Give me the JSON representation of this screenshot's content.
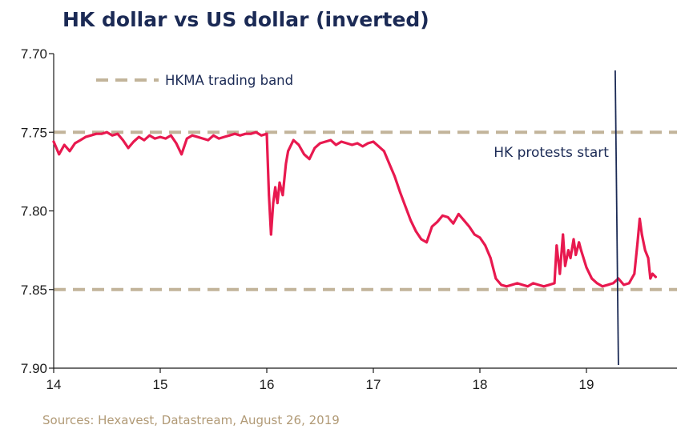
{
  "chart_data": {
    "type": "line",
    "title": "HK dollar vs US dollar (inverted)",
    "source": "Sources: Hexavest, Datastream, August 26, 2019",
    "xlabel": "",
    "ylabel": "",
    "x_ticks": [
      "14",
      "15",
      "16",
      "17",
      "18",
      "19"
    ],
    "y_ticks": [
      "7.70",
      "7.75",
      "7.80",
      "7.85",
      "7.90"
    ],
    "xlim": [
      14,
      19.75
    ],
    "ylim": [
      7.7,
      7.9
    ],
    "y_inverted": true,
    "grid": false,
    "legend_position": "top-left",
    "series": [
      {
        "color": "#e8194f",
        "x": [
          14.0,
          14.05,
          14.1,
          14.15,
          14.2,
          14.25,
          14.3,
          14.35,
          14.4,
          14.45,
          14.5,
          14.55,
          14.6,
          14.65,
          14.7,
          14.75,
          14.8,
          14.85,
          14.9,
          14.95,
          15.0,
          15.05,
          15.1,
          15.15,
          15.2,
          15.25,
          15.3,
          15.35,
          15.4,
          15.45,
          15.5,
          15.55,
          15.6,
          15.65,
          15.7,
          15.75,
          15.8,
          15.85,
          15.9,
          15.95,
          16.0,
          16.02,
          16.04,
          16.06,
          16.08,
          16.1,
          16.12,
          16.15,
          16.18,
          16.2,
          16.25,
          16.3,
          16.35,
          16.4,
          16.45,
          16.5,
          16.55,
          16.6,
          16.65,
          16.7,
          16.75,
          16.8,
          16.85,
          16.9,
          16.95,
          17.0,
          17.05,
          17.1,
          17.15,
          17.2,
          17.25,
          17.3,
          17.35,
          17.4,
          17.45,
          17.5,
          17.55,
          17.6,
          17.65,
          17.7,
          17.75,
          17.8,
          17.85,
          17.9,
          17.95,
          18.0,
          18.05,
          18.1,
          18.15,
          18.2,
          18.25,
          18.3,
          18.35,
          18.4,
          18.45,
          18.5,
          18.55,
          18.6,
          18.65,
          18.7,
          18.72,
          18.75,
          18.78,
          18.8,
          18.83,
          18.85,
          18.88,
          18.9,
          18.93,
          18.95,
          19.0,
          19.05,
          19.1,
          19.15,
          19.2,
          19.25,
          19.3,
          19.35,
          19.4,
          19.45,
          19.48,
          19.5,
          19.52,
          19.55,
          19.58,
          19.6,
          19.62,
          19.65
        ],
        "values": [
          7.756,
          7.764,
          7.758,
          7.762,
          7.757,
          7.755,
          7.753,
          7.752,
          7.751,
          7.751,
          7.75,
          7.752,
          7.751,
          7.755,
          7.76,
          7.756,
          7.753,
          7.755,
          7.752,
          7.754,
          7.753,
          7.754,
          7.752,
          7.757,
          7.764,
          7.754,
          7.752,
          7.753,
          7.754,
          7.755,
          7.752,
          7.754,
          7.753,
          7.752,
          7.751,
          7.752,
          7.751,
          7.751,
          7.75,
          7.752,
          7.751,
          7.79,
          7.815,
          7.795,
          7.785,
          7.795,
          7.782,
          7.79,
          7.77,
          7.762,
          7.755,
          7.758,
          7.764,
          7.767,
          7.76,
          7.757,
          7.756,
          7.755,
          7.758,
          7.756,
          7.757,
          7.758,
          7.757,
          7.759,
          7.757,
          7.756,
          7.759,
          7.762,
          7.77,
          7.778,
          7.788,
          7.797,
          7.806,
          7.813,
          7.818,
          7.82,
          7.81,
          7.807,
          7.803,
          7.804,
          7.808,
          7.802,
          7.806,
          7.81,
          7.815,
          7.817,
          7.822,
          7.83,
          7.843,
          7.847,
          7.848,
          7.847,
          7.846,
          7.847,
          7.848,
          7.846,
          7.847,
          7.848,
          7.847,
          7.846,
          7.822,
          7.84,
          7.815,
          7.835,
          7.825,
          7.83,
          7.818,
          7.828,
          7.82,
          7.825,
          7.836,
          7.843,
          7.846,
          7.848,
          7.847,
          7.846,
          7.843,
          7.847,
          7.846,
          7.84,
          7.82,
          7.805,
          7.815,
          7.825,
          7.83,
          7.843,
          7.84,
          7.842
        ]
      }
    ],
    "bands": {
      "label": "HKMA trading band",
      "color": "#c2b49a",
      "lines": [
        7.75,
        7.85
      ]
    },
    "annotation": {
      "label": "HK protests start",
      "x": 19.27,
      "color": "#1b2a55"
    }
  }
}
